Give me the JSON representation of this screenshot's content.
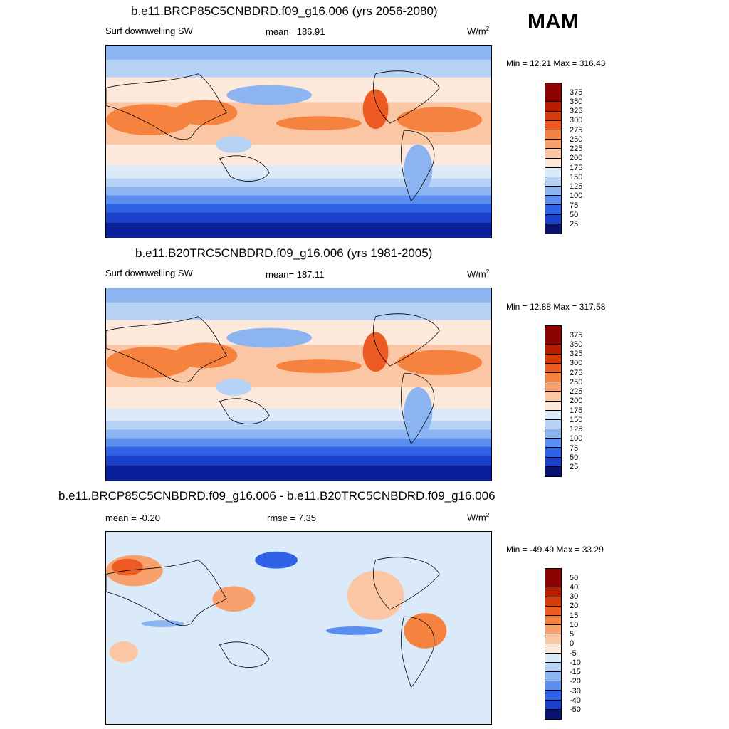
{
  "season": "MAM",
  "panels": [
    {
      "title": "b.e11.BRCP85C5CNBDRD.f09_g16.006 (yrs 2056-2080)",
      "left_label": "Surf downwelling SW",
      "mean_label": "mean= 186.91",
      "unit_base": "W/m",
      "unit_exp": "2",
      "minmax": "Min =  12.21 Max = 316.43",
      "levels": [
        "375",
        "350",
        "325",
        "300",
        "275",
        "250",
        "225",
        "200",
        "175",
        "150",
        "125",
        "100",
        "75",
        "50",
        "25"
      ]
    },
    {
      "title": "b.e11.B20TRC5CNBDRD.f09_g16.006 (yrs 1981-2005)",
      "left_label": "Surf downwelling SW",
      "mean_label": "mean= 187.11",
      "unit_base": "W/m",
      "unit_exp": "2",
      "minmax": "Min =  12.88 Max = 317.58",
      "levels": [
        "375",
        "350",
        "325",
        "300",
        "275",
        "250",
        "225",
        "200",
        "175",
        "150",
        "125",
        "100",
        "75",
        "50",
        "25"
      ]
    },
    {
      "title": "b.e11.BRCP85C5CNBDRD.f09_g16.006 - b.e11.B20TRC5CNBDRD.f09_g16.006",
      "left_label": "mean =  -0.20",
      "mean_label": "rmse =   7.35",
      "unit_base": "W/m",
      "unit_exp": "2",
      "minmax": "Min = -49.49 Max =  33.29",
      "levels": [
        "50",
        "40",
        "30",
        "20",
        "15",
        "10",
        "5",
        "0",
        "-5",
        "-10",
        "-15",
        "-20",
        "-30",
        "-40",
        "-50"
      ]
    }
  ],
  "colors": {
    "abs_scale": [
      "#8b0000",
      "#b81c00",
      "#d83a0a",
      "#ee5a24",
      "#f6823f",
      "#f8a06e",
      "#fbc6a4",
      "#fde9dc",
      "#dbeaf9",
      "#b6d2f5",
      "#8cb4f0",
      "#5a8ff0",
      "#2f62e6",
      "#1a3fc8",
      "#0a1f9c",
      "#06126e"
    ],
    "diff_scale": [
      "#8b0000",
      "#b81c00",
      "#d83a0a",
      "#ee5a24",
      "#f6823f",
      "#f8a06e",
      "#fbc6a4",
      "#fde9dc",
      "#dbeaf9",
      "#b6d2f5",
      "#8cb4f0",
      "#5a8ff0",
      "#2f62e6",
      "#1a3fc8",
      "#0a1f9c",
      "#06126e"
    ],
    "land_outline": "#000000"
  }
}
